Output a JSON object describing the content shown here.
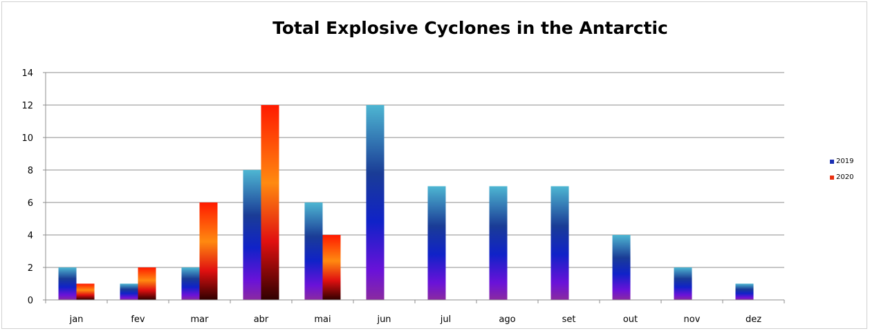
{
  "chart_data": {
    "type": "bar",
    "title": "Total Explosive Cyclones in the Antarctic",
    "categories": [
      "jan",
      "fev",
      "mar",
      "abr",
      "mai",
      "jun",
      "jul",
      "ago",
      "set",
      "out",
      "nov",
      "dez"
    ],
    "series": [
      {
        "name": "2019",
        "values": [
          2,
          1,
          2,
          8,
          6,
          12,
          7,
          7,
          7,
          4,
          2,
          1
        ],
        "color": "#1a2fb3"
      },
      {
        "name": "2020",
        "values": [
          1,
          2,
          6,
          12,
          4,
          0,
          0,
          0,
          0,
          0,
          0,
          0
        ],
        "color": "#e83010"
      }
    ],
    "ylim": [
      0,
      14
    ],
    "yticks": [
      0,
      2,
      4,
      6,
      8,
      10,
      12,
      14
    ],
    "grid": true,
    "legend": "right"
  }
}
